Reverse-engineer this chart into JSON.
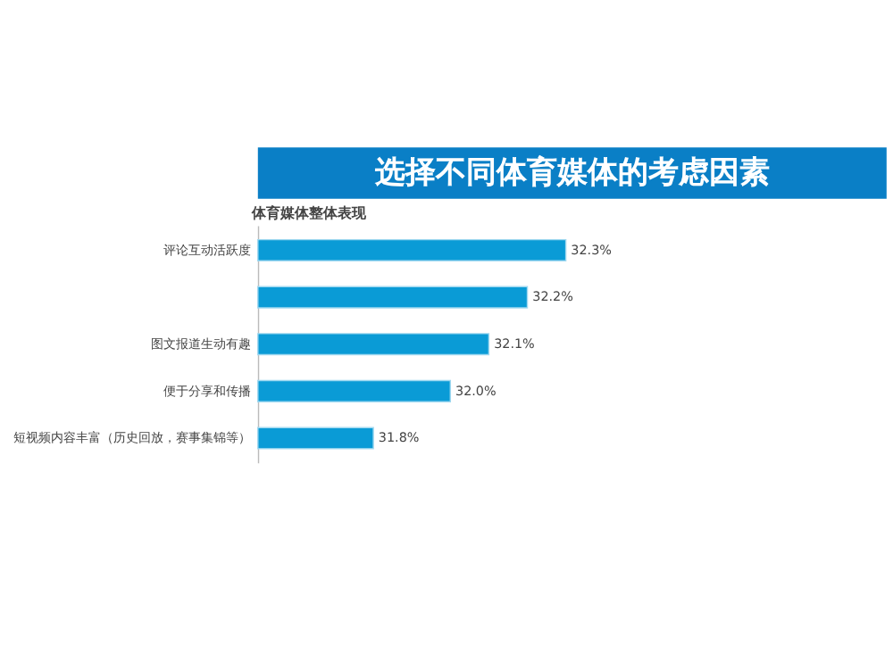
{
  "chart_data": {
    "type": "bar",
    "orientation": "horizontal",
    "title": "选择不同体育媒体的考虑因素",
    "subtitle": "体育媒体整体表现",
    "categories": [
      "评论互动活跃度",
      null,
      "图文报道生动有趣",
      "便于分享和传播",
      "短视频内容丰富（历史回放，赛事集锦等）"
    ],
    "values": [
      32.3,
      32.2,
      32.1,
      32.0,
      31.8
    ],
    "color": "#0a9bd6",
    "xlim": [
      31.5,
      32.3
    ],
    "data_labels": true,
    "value_labels": [
      "32.3%",
      "32.2%",
      "32.1%",
      "32.0%",
      "31.8%"
    ],
    "tick_labels": "y"
  }
}
